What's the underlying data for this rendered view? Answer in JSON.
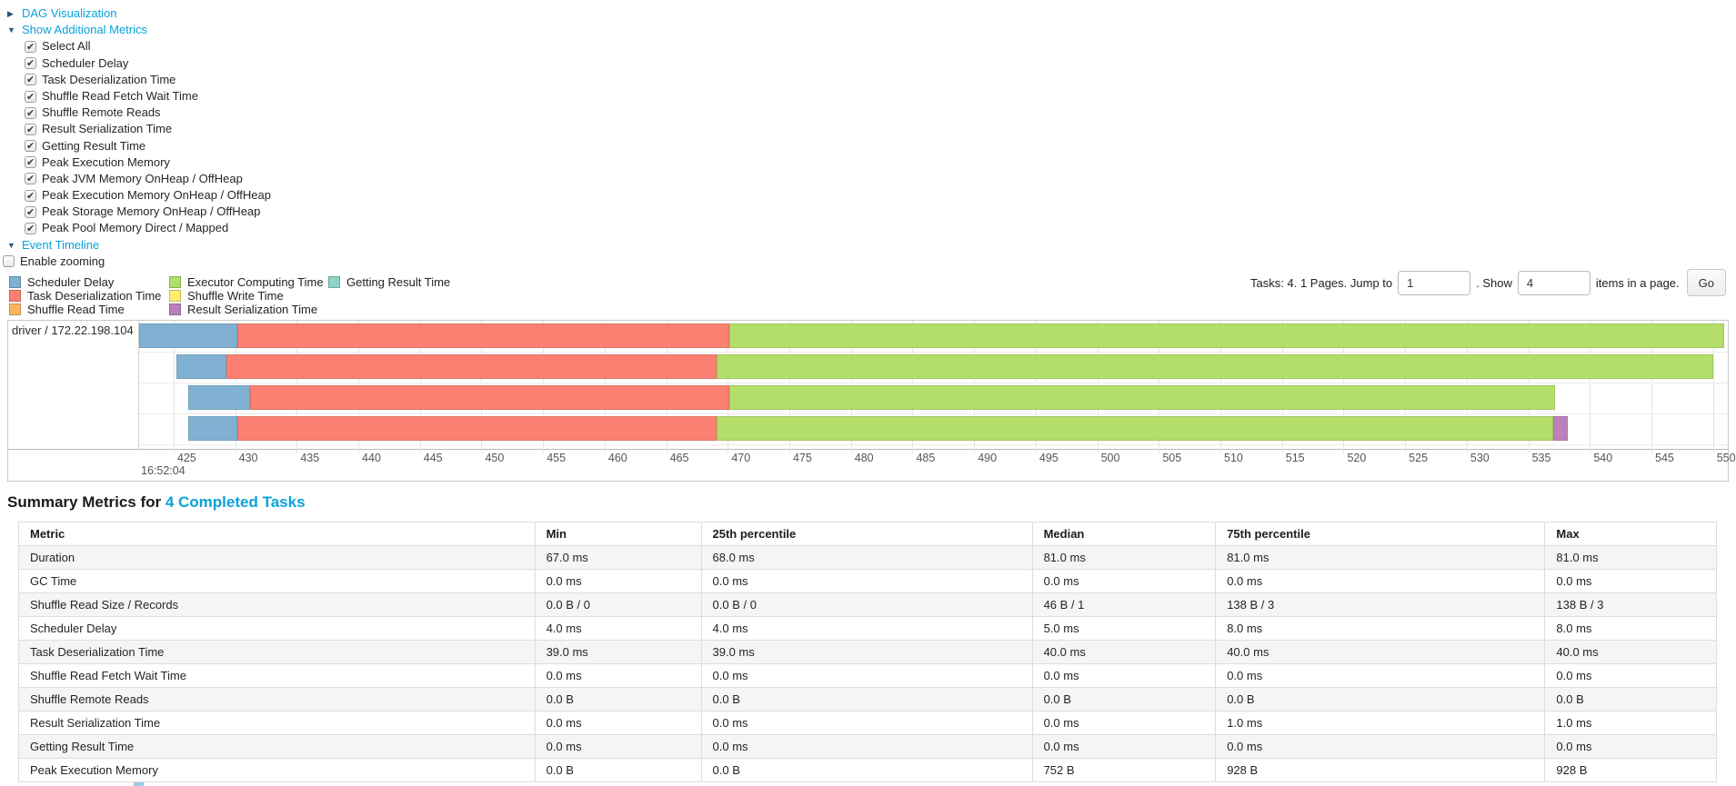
{
  "colors": {
    "link": "#0aa2d8",
    "arrow": "#24577d",
    "scheduler_delay": "#80B1D3",
    "task_deserialization": "#FB8072",
    "shuffle_read": "#FDB462",
    "executor_computing": "#B3DE69",
    "shuffle_write": "#FFED6F",
    "result_serialization": "#BC80BD",
    "getting_result": "#8DD3C7"
  },
  "toggles": {
    "dag": {
      "label": "DAG Visualization",
      "state": "collapsed",
      "arrow": "▶"
    },
    "metrics": {
      "label": "Show Additional Metrics",
      "state": "expanded",
      "arrow": "▼"
    },
    "event_timeline": {
      "label": "Event Timeline",
      "state": "expanded",
      "arrow": "▼"
    }
  },
  "metrics_checkboxes": [
    {
      "label": "Select All",
      "checked": true
    },
    {
      "label": "Scheduler Delay",
      "checked": true
    },
    {
      "label": "Task Deserialization Time",
      "checked": true
    },
    {
      "label": "Shuffle Read Fetch Wait Time",
      "checked": true
    },
    {
      "label": "Shuffle Remote Reads",
      "checked": true
    },
    {
      "label": "Result Serialization Time",
      "checked": true
    },
    {
      "label": "Getting Result Time",
      "checked": true
    },
    {
      "label": "Peak Execution Memory",
      "checked": true
    },
    {
      "label": "Peak JVM Memory OnHeap / OffHeap",
      "checked": true
    },
    {
      "label": "Peak Execution Memory OnHeap / OffHeap",
      "checked": true
    },
    {
      "label": "Peak Storage Memory OnHeap / OffHeap",
      "checked": true
    },
    {
      "label": "Peak Pool Memory Direct / Mapped",
      "checked": true
    }
  ],
  "enable_zooming": {
    "label": "Enable zooming",
    "checked": false
  },
  "timeline": {
    "legend": [
      {
        "key": "scheduler_delay",
        "label": "Scheduler Delay"
      },
      {
        "key": "task_deserialization",
        "label": "Task Deserialization Time"
      },
      {
        "key": "shuffle_read",
        "label": "Shuffle Read Time"
      },
      {
        "key": "executor_computing",
        "label": "Executor Computing Time"
      },
      {
        "key": "shuffle_write",
        "label": "Shuffle Write Time"
      },
      {
        "key": "result_serialization",
        "label": "Result Serialization Time"
      },
      {
        "key": "getting_result",
        "label": "Getting Result Time"
      }
    ],
    "pagination": {
      "prefix": "Tasks: 4. 1 Pages. Jump to",
      "jump_value": "1",
      "middle": ". Show",
      "show_value": "4",
      "suffix": "items in a page.",
      "go_label": "Go"
    }
  },
  "chart_data": {
    "type": "timeline-gantt",
    "title": "Event Timeline",
    "group_label": "driver / 172.22.198.104",
    "x_window": [
      422.2,
      551.2
    ],
    "x_ticks": [
      425,
      430,
      435,
      440,
      445,
      450,
      455,
      460,
      465,
      470,
      475,
      480,
      485,
      490,
      495,
      500,
      505,
      510,
      515,
      520,
      525,
      530,
      535,
      540,
      545,
      550
    ],
    "x_base_time": "16:52:04",
    "x_unit": "ms within 16:52:04",
    "tasks": [
      {
        "segments": [
          {
            "kind": "scheduler_delay",
            "start": 422.2,
            "end": 430.2
          },
          {
            "kind": "task_deserialization",
            "start": 430.2,
            "end": 470.1
          },
          {
            "kind": "executor_computing",
            "start": 470.1,
            "end": 550.9
          }
        ]
      },
      {
        "segments": [
          {
            "kind": "scheduler_delay",
            "start": 425.2,
            "end": 429.3
          },
          {
            "kind": "task_deserialization",
            "start": 429.3,
            "end": 469.1
          },
          {
            "kind": "executor_computing",
            "start": 469.1,
            "end": 550.0
          }
        ]
      },
      {
        "segments": [
          {
            "kind": "scheduler_delay",
            "start": 426.2,
            "end": 431.2
          },
          {
            "kind": "task_deserialization",
            "start": 431.2,
            "end": 470.1
          },
          {
            "kind": "executor_computing",
            "start": 470.1,
            "end": 537.2
          }
        ]
      },
      {
        "segments": [
          {
            "kind": "scheduler_delay",
            "start": 426.2,
            "end": 430.2
          },
          {
            "kind": "task_deserialization",
            "start": 430.2,
            "end": 469.1
          },
          {
            "kind": "executor_computing",
            "start": 469.1,
            "end": 537.0
          },
          {
            "kind": "result_serialization",
            "start": 537.0,
            "end": 538.2
          }
        ]
      }
    ]
  },
  "summary": {
    "title_prefix": "Summary Metrics for ",
    "title_link": "4 Completed Tasks"
  },
  "table": {
    "columns": [
      "Metric",
      "Min",
      "25th percentile",
      "Median",
      "75th percentile",
      "Max"
    ],
    "col_widths_pct": [
      30.4,
      9.8,
      19.5,
      10.8,
      19.4,
      10.1
    ],
    "rows": [
      {
        "metric": "Duration",
        "values": [
          "67.0 ms",
          "68.0 ms",
          "81.0 ms",
          "81.0 ms",
          "81.0 ms"
        ]
      },
      {
        "metric": "GC Time",
        "values": [
          "0.0 ms",
          "0.0 ms",
          "0.0 ms",
          "0.0 ms",
          "0.0 ms"
        ]
      },
      {
        "metric": "Shuffle Read Size / Records",
        "values": [
          "0.0 B / 0",
          "0.0 B / 0",
          "46 B / 1",
          "138 B / 3",
          "138 B / 3"
        ]
      },
      {
        "metric": "Scheduler Delay",
        "values": [
          "4.0 ms",
          "4.0 ms",
          "5.0 ms",
          "8.0 ms",
          "8.0 ms"
        ]
      },
      {
        "metric": "Task Deserialization Time",
        "values": [
          "39.0 ms",
          "39.0 ms",
          "40.0 ms",
          "40.0 ms",
          "40.0 ms"
        ]
      },
      {
        "metric": "Shuffle Read Fetch Wait Time",
        "values": [
          "0.0 ms",
          "0.0 ms",
          "0.0 ms",
          "0.0 ms",
          "0.0 ms"
        ]
      },
      {
        "metric": "Shuffle Remote Reads",
        "values": [
          "0.0 B",
          "0.0 B",
          "0.0 B",
          "0.0 B",
          "0.0 B"
        ]
      },
      {
        "metric": "Result Serialization Time",
        "values": [
          "0.0 ms",
          "0.0 ms",
          "0.0 ms",
          "1.0 ms",
          "1.0 ms"
        ]
      },
      {
        "metric": "Getting Result Time",
        "values": [
          "0.0 ms",
          "0.0 ms",
          "0.0 ms",
          "0.0 ms",
          "0.0 ms"
        ]
      },
      {
        "metric": "Peak Execution Memory",
        "values": [
          "0.0 B",
          "0.0 B",
          "752 B",
          "928 B",
          "928 B"
        ]
      }
    ]
  }
}
